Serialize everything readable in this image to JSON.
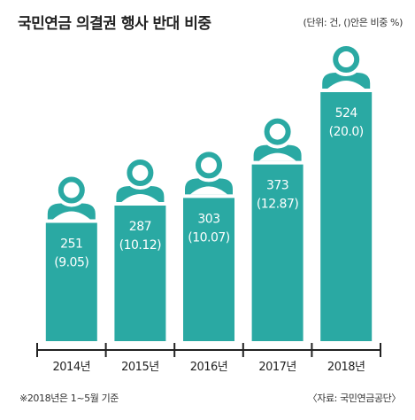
{
  "chart_data": {
    "type": "bar",
    "title": "국민연금 의결권 행사 반대 비중",
    "unit_note": "(단위: 건, ()안은 비중 %)",
    "categories": [
      "2014년",
      "2015년",
      "2016년",
      "2017년",
      "2018년"
    ],
    "series": [
      {
        "values": [
          251,
          287,
          303,
          373,
          524
        ]
      }
    ],
    "share_labels": [
      "(9.05)",
      "(10.12)",
      "(10.07)",
      "(12.87)",
      "(20.0)"
    ],
    "value_labels": [
      "251",
      "287",
      "303",
      "373",
      "524"
    ],
    "ylim": [
      0,
      580
    ],
    "grid": false,
    "bar_color": "#2aa9a3"
  },
  "footnote": "※2018년은 1~5월 기준",
  "source": "〈자료: 국민연금공단〉"
}
